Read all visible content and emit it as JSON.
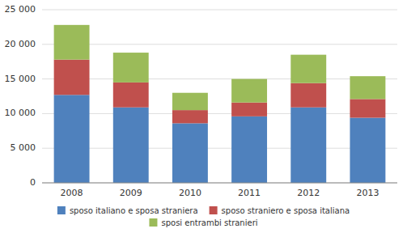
{
  "chart_data": {
    "type": "bar",
    "stacked": true,
    "categories": [
      "2008",
      "2009",
      "2010",
      "2011",
      "2012",
      "2013"
    ],
    "series": [
      {
        "name": "sposo italiano e sposa straniera",
        "color": "#4F81BD",
        "values": [
          12700,
          10900,
          8600,
          9600,
          10900,
          9400
        ]
      },
      {
        "name": "sposo straniero e sposa italiana",
        "color": "#C0504D",
        "values": [
          5100,
          3600,
          1900,
          2000,
          3500,
          2700
        ]
      },
      {
        "name": "sposi entrambi stranieri",
        "color": "#9BBB59",
        "values": [
          5000,
          4300,
          2500,
          3400,
          4100,
          3300
        ]
      }
    ],
    "ylim": [
      0,
      25000
    ],
    "yticks": [
      0,
      {
        "value": 5000,
        "label": "5 000"
      },
      {
        "value": 10000,
        "label": "10 000"
      },
      {
        "value": 15000,
        "label": "15 000"
      },
      {
        "value": 20000,
        "label": "20 000"
      },
      {
        "value": 25000,
        "label": "25 000"
      }
    ],
    "grid": true,
    "legend": "bottom"
  }
}
